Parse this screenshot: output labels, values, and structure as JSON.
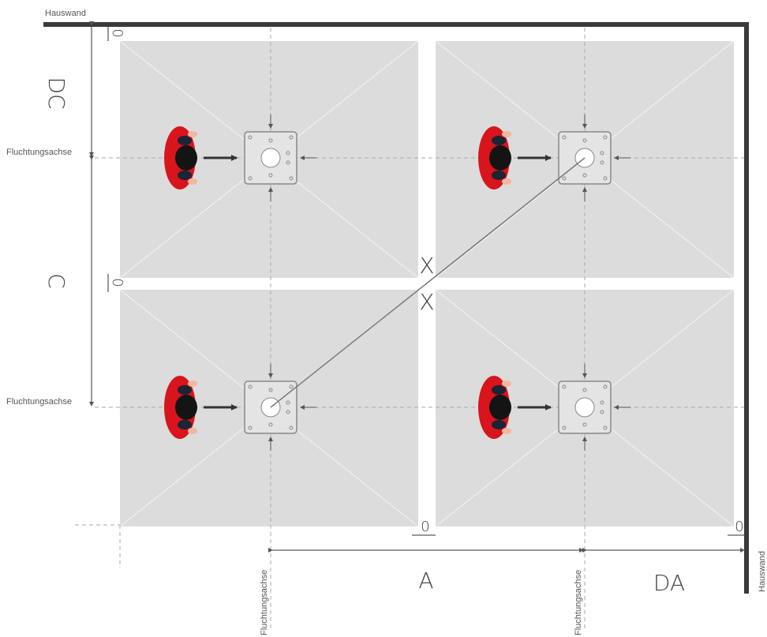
{
  "walls": [
    "Hauswand",
    "Hauswand"
  ],
  "dimensions": {
    "dc": "DC",
    "c": "C",
    "a": "A",
    "da": "DA"
  },
  "gaps": [
    "0",
    "0",
    "0",
    "0"
  ],
  "axes": [
    "Fluchtungsachse",
    "Fluchtungsachse",
    "Fluchtungsachse",
    "Fluchtungsachse"
  ],
  "diagonal": [
    "X",
    "X"
  ]
}
